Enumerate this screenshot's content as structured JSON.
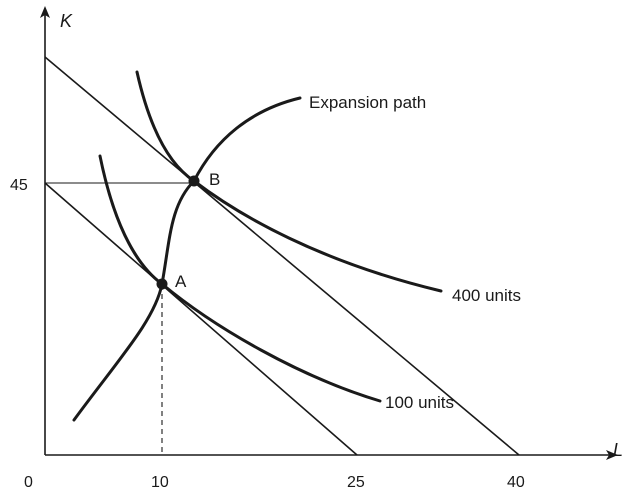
{
  "diagram": {
    "axes": {
      "y_label": "K",
      "x_label": "L"
    },
    "ticks": {
      "origin": "0",
      "x": [
        "10",
        "25",
        "40"
      ],
      "y": [
        "45"
      ]
    },
    "points": {
      "a": "A",
      "b": "B"
    },
    "labels": {
      "expansion_path": "Expansion path",
      "isoquant_high": "400 units",
      "isoquant_low": "100 units"
    }
  }
}
